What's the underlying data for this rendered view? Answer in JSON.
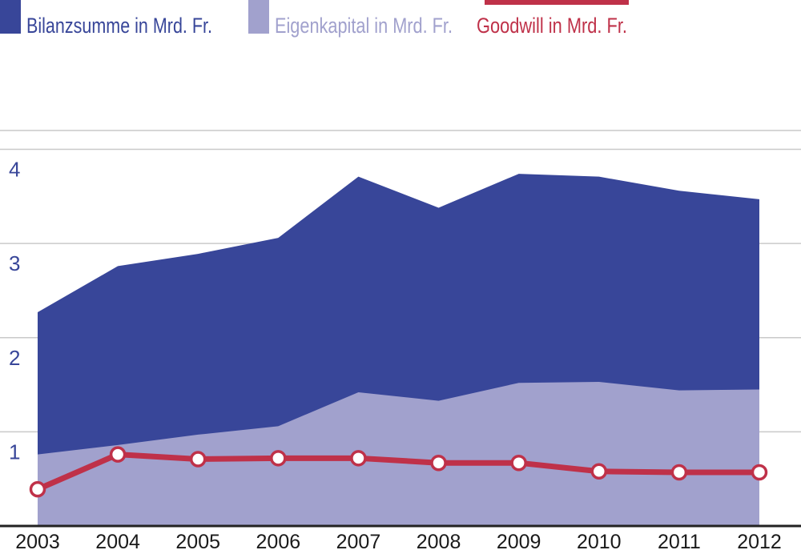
{
  "chart_data": {
    "type": "area",
    "title": "",
    "xlabel": "",
    "ylabel": "",
    "ylim": [
      0,
      4.2
    ],
    "y_ticks": [
      "1",
      "2",
      "3",
      "4"
    ],
    "y_tick_values": [
      1,
      2,
      3,
      4
    ],
    "categories": [
      "2003",
      "2004",
      "2005",
      "2006",
      "2007",
      "2008",
      "2009",
      "2010",
      "2011",
      "2012"
    ],
    "series": [
      {
        "name": "Bilanzsumme in Mrd. Fr.",
        "style": "area",
        "color": "#384699",
        "values": [
          2.27,
          2.76,
          2.89,
          3.06,
          3.71,
          3.38,
          3.74,
          3.71,
          3.56,
          3.47
        ]
      },
      {
        "name": "Eigenkapital in Mrd. Fr.",
        "style": "area",
        "color": "#a1a1cd",
        "values": [
          0.76,
          0.86,
          0.97,
          1.06,
          1.42,
          1.33,
          1.52,
          1.53,
          1.44,
          1.45
        ]
      },
      {
        "name": "Goodwill in Mrd. Fr.",
        "style": "line",
        "color": "#bf3149",
        "values": [
          0.39,
          0.76,
          0.71,
          0.72,
          0.72,
          0.67,
          0.67,
          0.58,
          0.57,
          0.57
        ]
      }
    ],
    "gridlines": true,
    "legend_position": "top-left"
  }
}
